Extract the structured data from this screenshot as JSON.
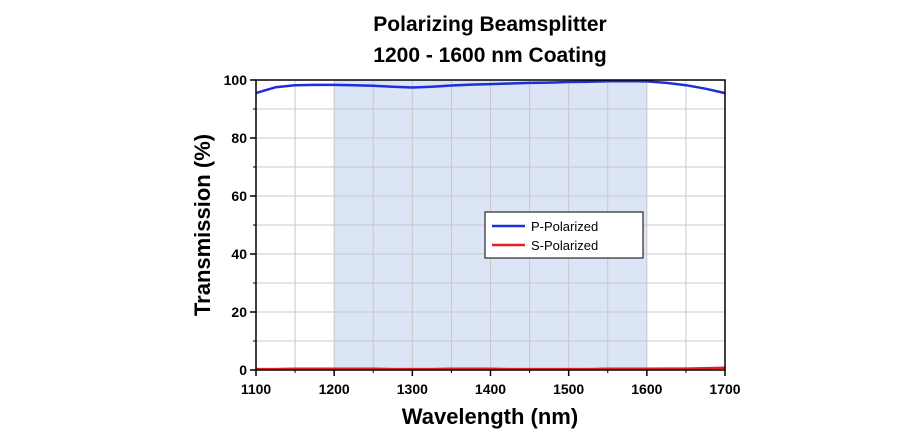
{
  "chart_data": {
    "type": "line",
    "title_lines": [
      "Polarizing Beamsplitter",
      "1200 - 1600 nm Coating"
    ],
    "xlabel": "Wavelength (nm)",
    "ylabel": "Transmission (%)",
    "xlim": [
      1100,
      1700
    ],
    "ylim": [
      0,
      100
    ],
    "x_ticks": [
      1100,
      1200,
      1300,
      1400,
      1500,
      1600,
      1700
    ],
    "y_ticks": [
      0,
      20,
      40,
      60,
      80,
      100
    ],
    "grid": true,
    "legend_position": "center-right",
    "highlight_band": {
      "x_range": [
        1200,
        1600
      ],
      "color": "#dbe5f5"
    },
    "x": [
      1100,
      1110,
      1125,
      1150,
      1175,
      1200,
      1225,
      1250,
      1275,
      1300,
      1325,
      1350,
      1375,
      1400,
      1425,
      1450,
      1475,
      1500,
      1525,
      1550,
      1575,
      1600,
      1625,
      1650,
      1675,
      1700
    ],
    "series": [
      {
        "name": "P-Polarized",
        "color": "#1f2fd6",
        "values": [
          95.5,
          96.3,
          97.5,
          98.2,
          98.3,
          98.3,
          98.2,
          98.0,
          97.7,
          97.4,
          97.7,
          98.1,
          98.4,
          98.6,
          98.8,
          99.0,
          99.1,
          99.3,
          99.4,
          99.6,
          99.6,
          99.5,
          99.0,
          98.2,
          97.0,
          95.5
        ]
      },
      {
        "name": "S-Polarized",
        "color": "#e51e1e",
        "values": [
          0.3,
          0.3,
          0.3,
          0.4,
          0.4,
          0.4,
          0.4,
          0.4,
          0.3,
          0.3,
          0.3,
          0.4,
          0.4,
          0.4,
          0.3,
          0.3,
          0.3,
          0.3,
          0.3,
          0.4,
          0.4,
          0.4,
          0.5,
          0.5,
          0.6,
          0.8
        ]
      }
    ]
  }
}
